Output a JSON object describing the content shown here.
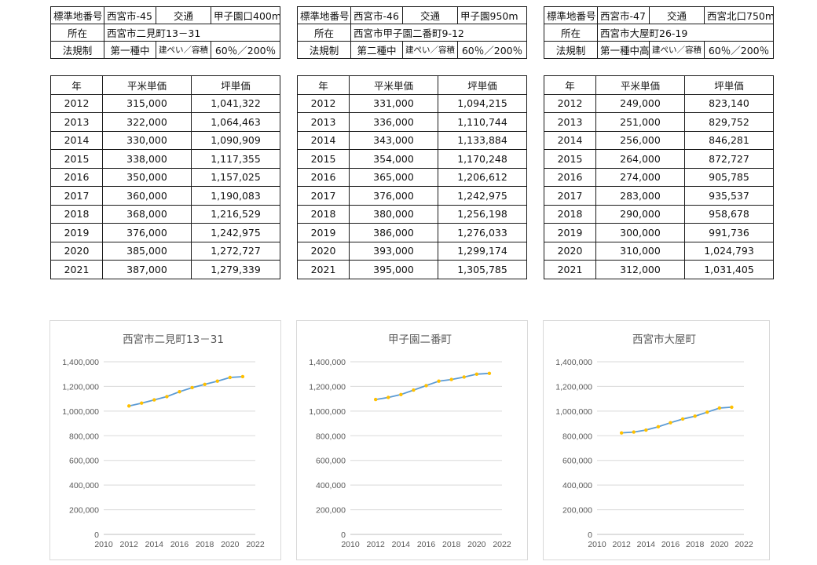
{
  "headers": {
    "station_no": "標準地番号",
    "transport": "交通",
    "location": "所在",
    "zoning": "法規制",
    "coverage": "建ぺい／容積",
    "year": "年",
    "sqm_price": "平米単価",
    "tsubo_price": "坪単価"
  },
  "panels": [
    {
      "station_no": "西宮市-45",
      "transport": "甲子園口400m",
      "location": "西宮市二見町13－31",
      "zoning": "第一種中",
      "coverage": "60％／200％",
      "rows": [
        {
          "year": "2012",
          "sqm": "315,000",
          "tsubo": "1,041,322"
        },
        {
          "year": "2013",
          "sqm": "322,000",
          "tsubo": "1,064,463"
        },
        {
          "year": "2014",
          "sqm": "330,000",
          "tsubo": "1,090,909"
        },
        {
          "year": "2015",
          "sqm": "338,000",
          "tsubo": "1,117,355"
        },
        {
          "year": "2016",
          "sqm": "350,000",
          "tsubo": "1,157,025"
        },
        {
          "year": "2017",
          "sqm": "360,000",
          "tsubo": "1,190,083"
        },
        {
          "year": "2018",
          "sqm": "368,000",
          "tsubo": "1,216,529"
        },
        {
          "year": "2019",
          "sqm": "376,000",
          "tsubo": "1,242,975"
        },
        {
          "year": "2020",
          "sqm": "385,000",
          "tsubo": "1,272,727"
        },
        {
          "year": "2021",
          "sqm": "387,000",
          "tsubo": "1,279,339"
        }
      ]
    },
    {
      "station_no": "西宮市-46",
      "transport": "甲子園950m",
      "location": "西宮市甲子園二番町9-12",
      "zoning": "第二種中",
      "coverage": "60％／200％",
      "rows": [
        {
          "year": "2012",
          "sqm": "331,000",
          "tsubo": "1,094,215"
        },
        {
          "year": "2013",
          "sqm": "336,000",
          "tsubo": "1,110,744"
        },
        {
          "year": "2014",
          "sqm": "343,000",
          "tsubo": "1,133,884"
        },
        {
          "year": "2015",
          "sqm": "354,000",
          "tsubo": "1,170,248"
        },
        {
          "year": "2016",
          "sqm": "365,000",
          "tsubo": "1,206,612"
        },
        {
          "year": "2017",
          "sqm": "376,000",
          "tsubo": "1,242,975"
        },
        {
          "year": "2018",
          "sqm": "380,000",
          "tsubo": "1,256,198"
        },
        {
          "year": "2019",
          "sqm": "386,000",
          "tsubo": "1,276,033"
        },
        {
          "year": "2020",
          "sqm": "393,000",
          "tsubo": "1,299,174"
        },
        {
          "year": "2021",
          "sqm": "395,000",
          "tsubo": "1,305,785"
        }
      ]
    },
    {
      "station_no": "西宮市-47",
      "transport": "西宮北口750m",
      "location": "西宮市大屋町26-19",
      "zoning": "第一種中高",
      "coverage": "60％／200％",
      "rows": [
        {
          "year": "2012",
          "sqm": "249,000",
          "tsubo": "823,140"
        },
        {
          "year": "2013",
          "sqm": "251,000",
          "tsubo": "829,752"
        },
        {
          "year": "2014",
          "sqm": "256,000",
          "tsubo": "846,281"
        },
        {
          "year": "2015",
          "sqm": "264,000",
          "tsubo": "872,727"
        },
        {
          "year": "2016",
          "sqm": "274,000",
          "tsubo": "905,785"
        },
        {
          "year": "2017",
          "sqm": "283,000",
          "tsubo": "935,537"
        },
        {
          "year": "2018",
          "sqm": "290,000",
          "tsubo": "958,678"
        },
        {
          "year": "2019",
          "sqm": "300,000",
          "tsubo": "991,736"
        },
        {
          "year": "2020",
          "sqm": "310,000",
          "tsubo": "1,024,793"
        },
        {
          "year": "2021",
          "sqm": "312,000",
          "tsubo": "1,031,405"
        }
      ]
    }
  ],
  "colors": {
    "line": "#5b9bd5",
    "marker": "#ffc000",
    "gridline": "#d9d9d9",
    "tick_text": "#595959"
  },
  "chart_data": [
    {
      "type": "scatter",
      "title": "西宮市二見町13－31",
      "x": [
        2012,
        2013,
        2014,
        2015,
        2016,
        2017,
        2018,
        2019,
        2020,
        2021
      ],
      "y": [
        1041322,
        1064463,
        1090909,
        1117355,
        1157025,
        1190083,
        1216529,
        1242975,
        1272727,
        1279339
      ],
      "xlim": [
        2010,
        2022
      ],
      "ylim": [
        0,
        1400000
      ],
      "xticks": [
        "2010",
        "2012",
        "2014",
        "2016",
        "2018",
        "2020",
        "2022"
      ],
      "yticks": [
        "0",
        "200,000",
        "400,000",
        "600,000",
        "800,000",
        "1,000,000",
        "1,200,000",
        "1,400,000"
      ],
      "grid": "horizontal",
      "lines": true,
      "legend": "none"
    },
    {
      "type": "scatter",
      "title": "甲子園二番町",
      "x": [
        2012,
        2013,
        2014,
        2015,
        2016,
        2017,
        2018,
        2019,
        2020,
        2021
      ],
      "y": [
        1094215,
        1110744,
        1133884,
        1170248,
        1206612,
        1242975,
        1256198,
        1276033,
        1299174,
        1305785
      ],
      "xlim": [
        2010,
        2022
      ],
      "ylim": [
        0,
        1400000
      ],
      "xticks": [
        "2010",
        "2012",
        "2014",
        "2016",
        "2018",
        "2020",
        "2022"
      ],
      "yticks": [
        "0",
        "200,000",
        "400,000",
        "600,000",
        "800,000",
        "1,000,000",
        "1,200,000",
        "1,400,000"
      ],
      "grid": "horizontal",
      "lines": true,
      "legend": "none"
    },
    {
      "type": "scatter",
      "title": "西宮市大屋町",
      "x": [
        2012,
        2013,
        2014,
        2015,
        2016,
        2017,
        2018,
        2019,
        2020,
        2021
      ],
      "y": [
        823140,
        829752,
        846281,
        872727,
        905785,
        935537,
        958678,
        991736,
        1024793,
        1031405
      ],
      "xlim": [
        2010,
        2022
      ],
      "ylim": [
        0,
        1400000
      ],
      "xticks": [
        "2010",
        "2012",
        "2014",
        "2016",
        "2018",
        "2020",
        "2022"
      ],
      "yticks": [
        "0",
        "200,000",
        "400,000",
        "600,000",
        "800,000",
        "1,000,000",
        "1,200,000",
        "1,400,000"
      ],
      "grid": "horizontal",
      "lines": true,
      "legend": "none"
    }
  ]
}
